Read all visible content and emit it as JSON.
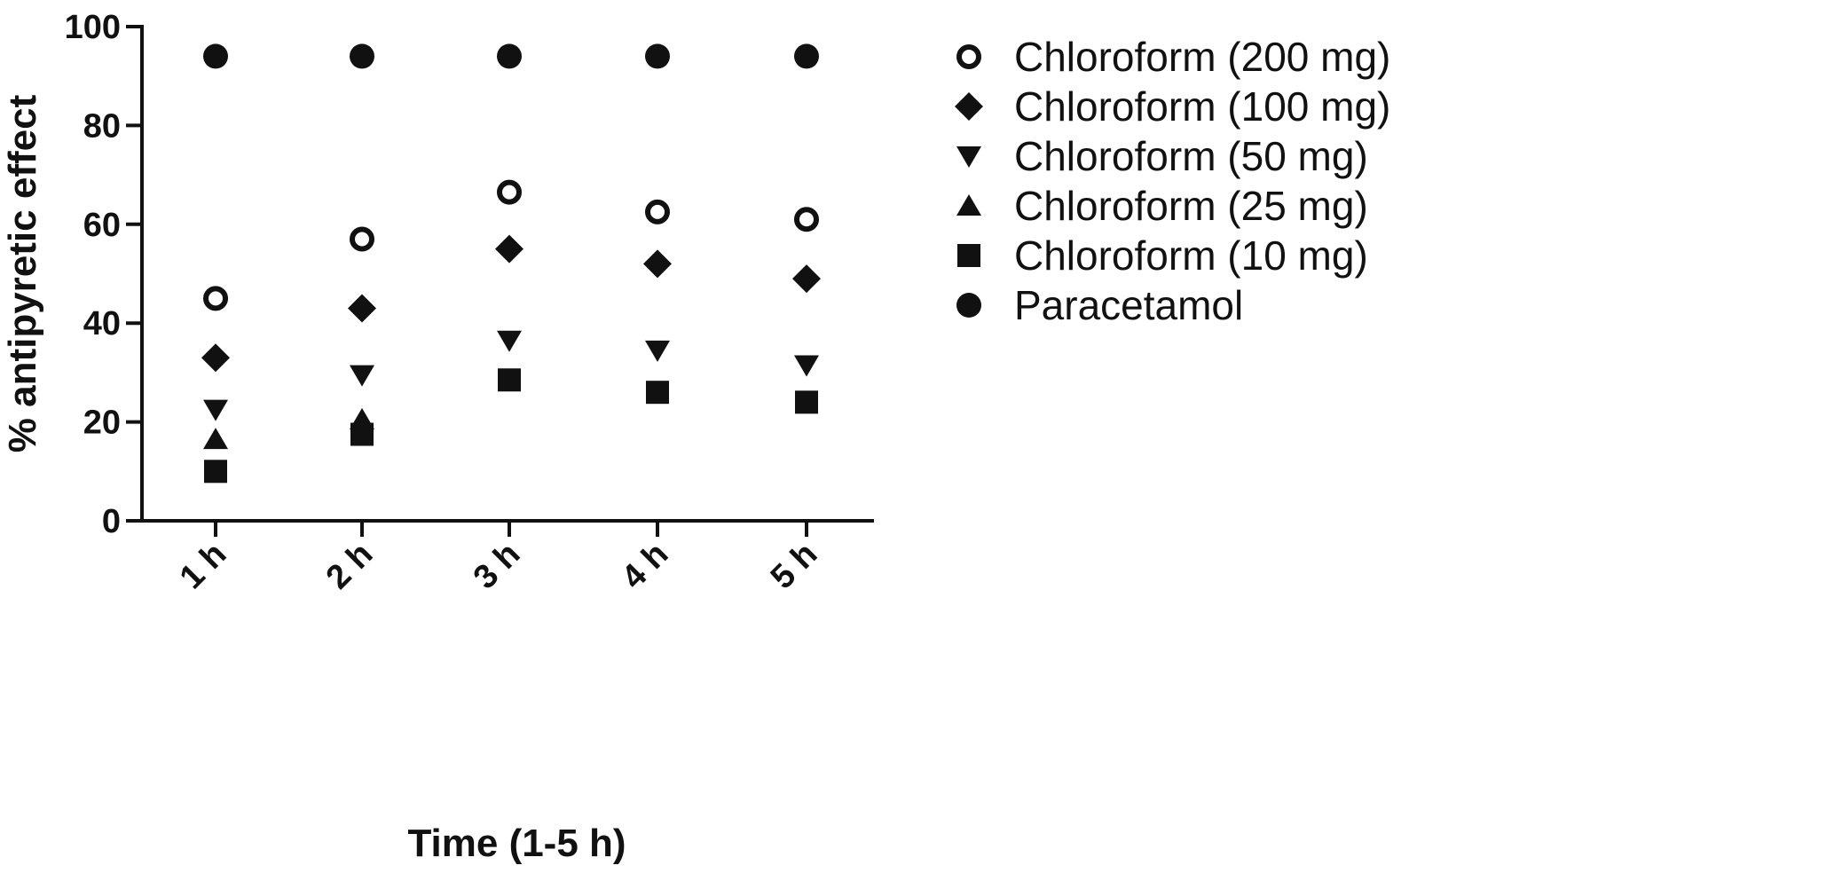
{
  "chart_data": {
    "type": "scatter",
    "categories": [
      "1 h",
      "2 h",
      "3 h",
      "4 h",
      "5 h"
    ],
    "xlabel": "Time (1-5 h)",
    "ylabel": "% antipyretic effect",
    "ylim": [
      0,
      100
    ],
    "yticks": [
      "0",
      "20",
      "40",
      "60",
      "80",
      "100"
    ],
    "grid": false,
    "legend_position": "right",
    "series": [
      {
        "name": "Chloroform (200 mg)",
        "marker": "open-circle",
        "values": [
          45,
          57,
          66.5,
          62.5,
          61
        ]
      },
      {
        "name": "Chloroform (100 mg)",
        "marker": "diamond",
        "values": [
          33,
          43,
          55,
          52,
          49
        ]
      },
      {
        "name": "Chloroform (50 mg)",
        "marker": "triangle-down",
        "values": [
          22.5,
          29.5,
          36.5,
          34.5,
          31.5
        ]
      },
      {
        "name": "Chloroform (25 mg)",
        "marker": "triangle-up",
        "values": [
          16.5,
          20.5,
          null,
          null,
          null
        ]
      },
      {
        "name": "Chloroform (10 mg)",
        "marker": "square",
        "values": [
          10,
          17.5,
          28.5,
          26,
          24
        ]
      },
      {
        "name": "Paracetamol",
        "marker": "filled-circle",
        "values": [
          94,
          94,
          94,
          94,
          94
        ]
      }
    ],
    "colors": {
      "marker": "#111111",
      "axis": "#111111",
      "background": "#ffffff"
    }
  }
}
